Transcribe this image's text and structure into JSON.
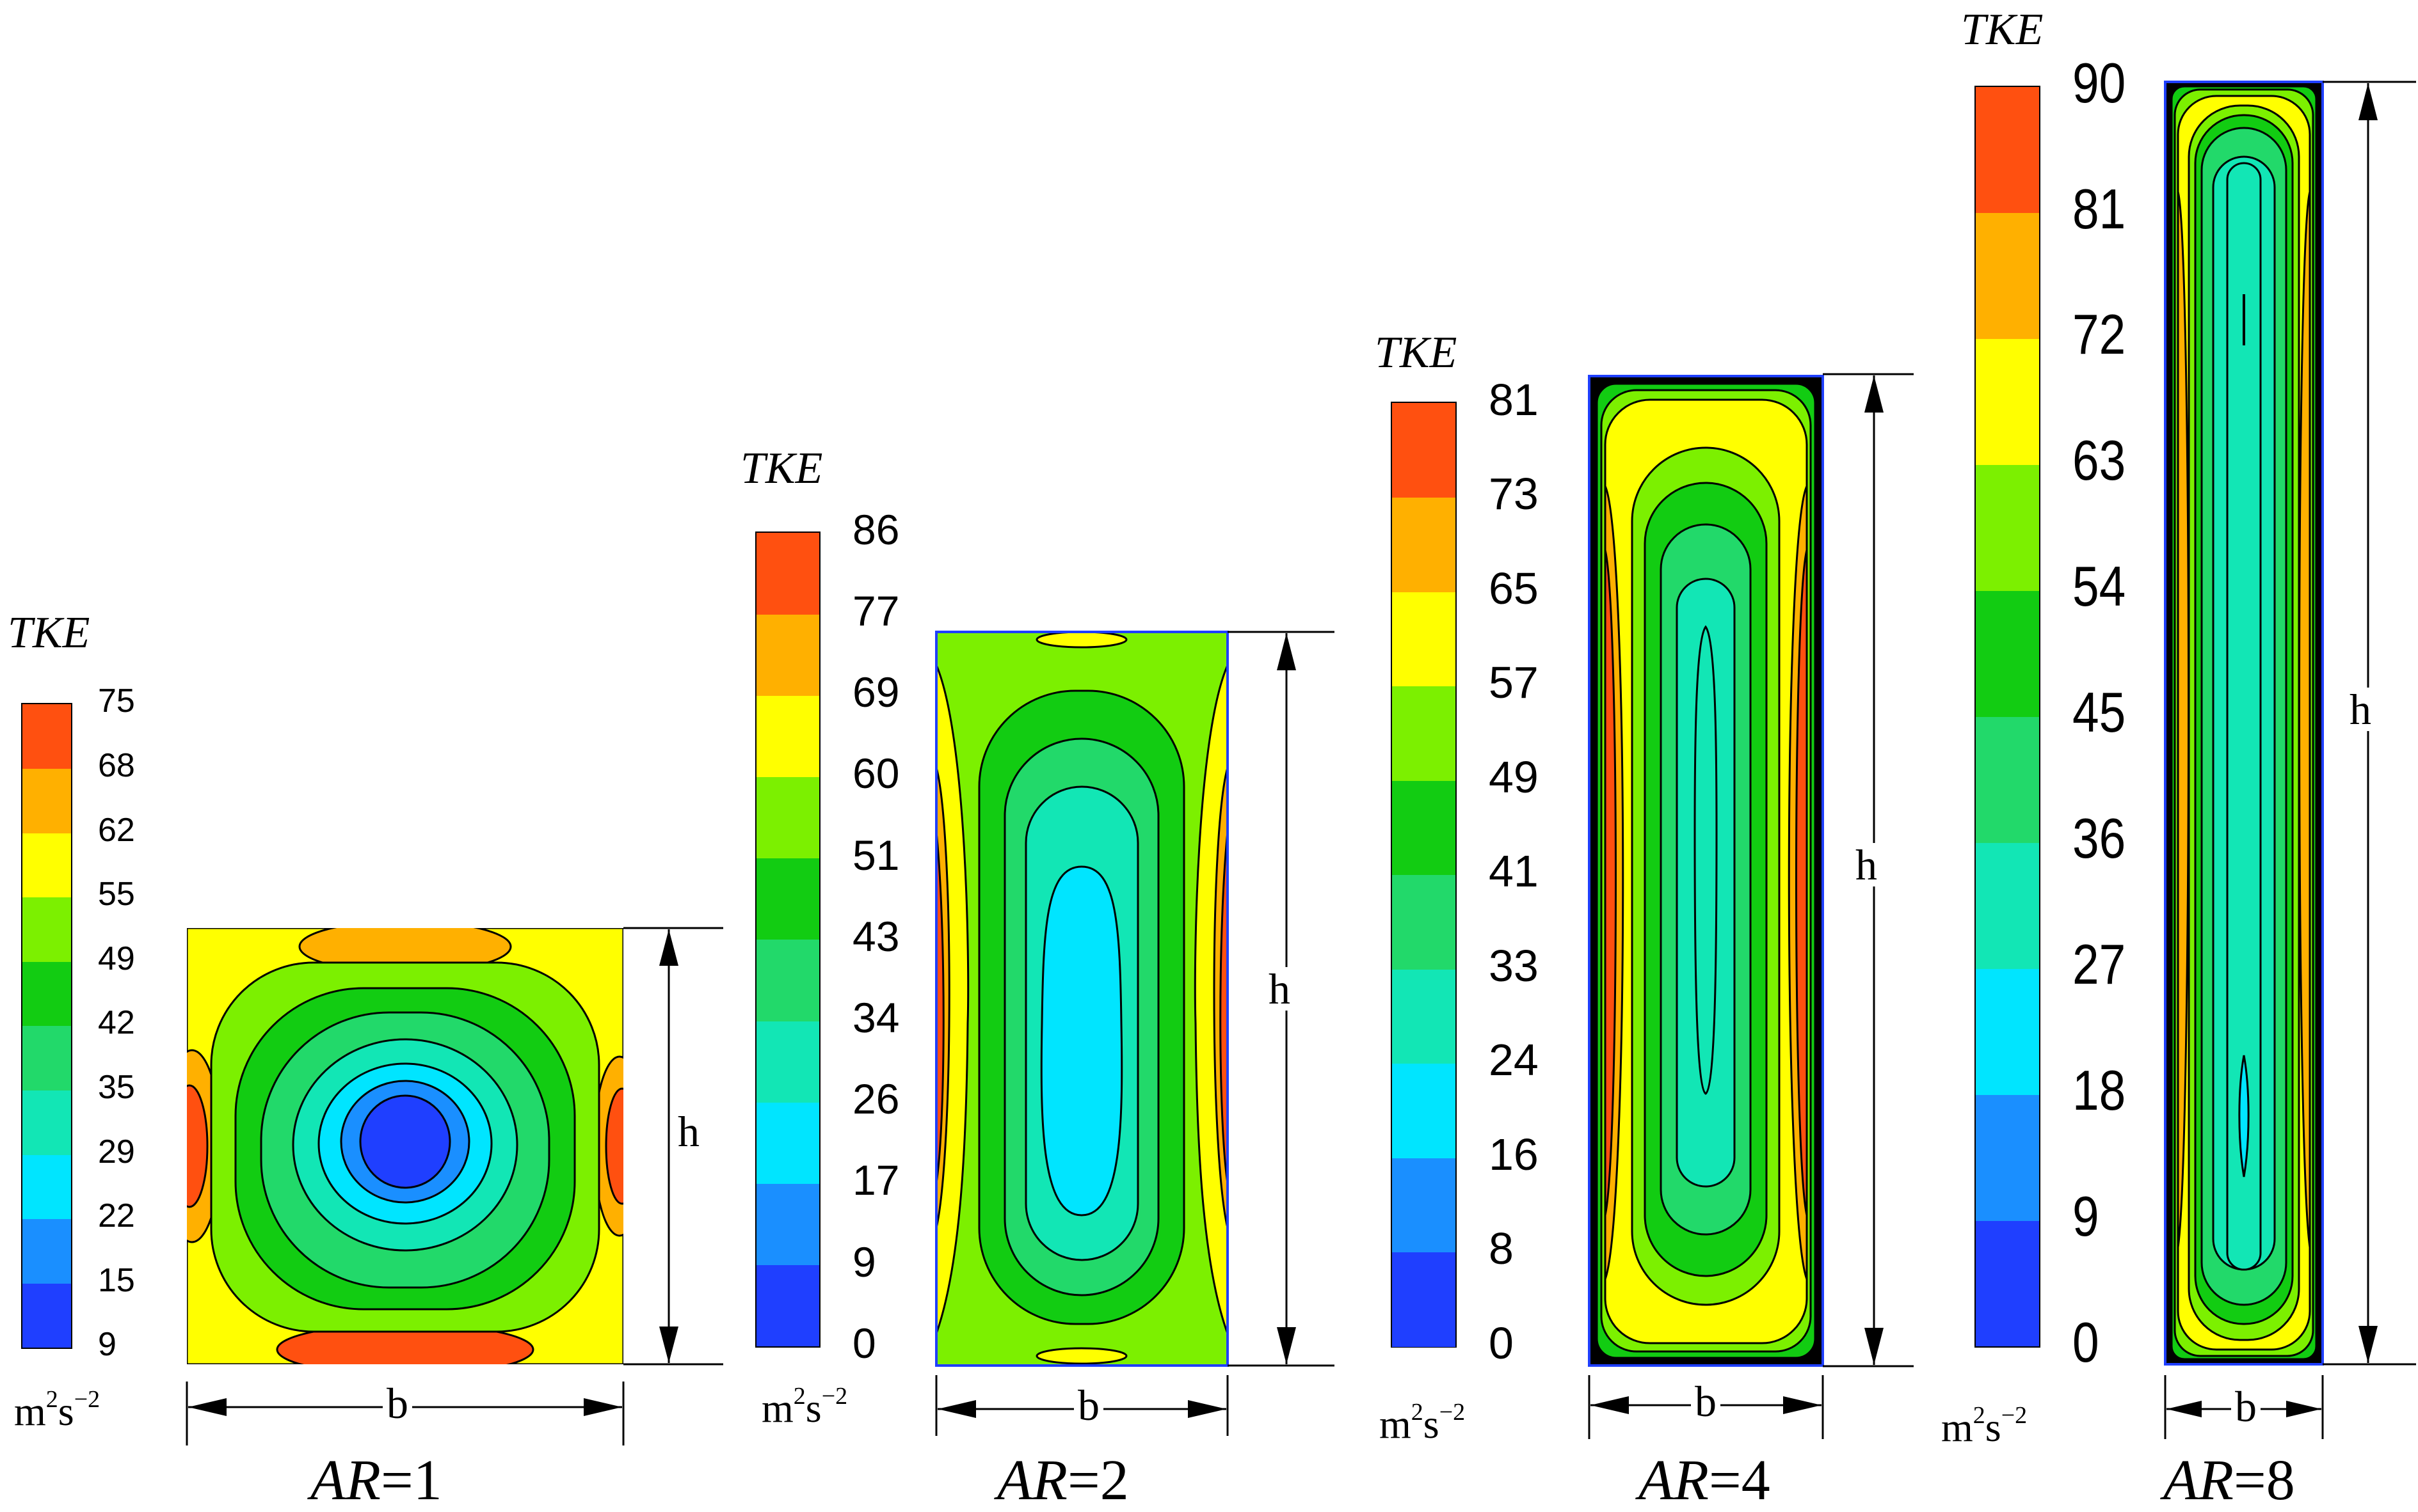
{
  "legend_title": "TKE",
  "unit": {
    "base": "m",
    "exp1": "2",
    "mid": "s",
    "exp2": "−2"
  },
  "dimension_labels": {
    "width": "b",
    "height": "h"
  },
  "colormap": [
    "#1f3fff",
    "#1a8fff",
    "#00e5ff",
    "#12e6b5",
    "#22d96a",
    "#12cc12",
    "#7cf000",
    "#ffff00",
    "#ffb000",
    "#ff5010"
  ],
  "panels": [
    {
      "label": "AR=1",
      "ar_prefix": "AR",
      "ar_value": "=1",
      "aspect_ratio": 1,
      "ticks": [
        "9",
        "15",
        "22",
        "29",
        "35",
        "42",
        "49",
        "55",
        "62",
        "68",
        "75"
      ]
    },
    {
      "label": "AR=2",
      "ar_prefix": "AR",
      "ar_value": "=2",
      "aspect_ratio": 2,
      "ticks": [
        "0",
        "9",
        "17",
        "26",
        "34",
        "43",
        "51",
        "60",
        "69",
        "77",
        "86"
      ]
    },
    {
      "label": "AR=4",
      "ar_prefix": "AR",
      "ar_value": "=4",
      "aspect_ratio": 4,
      "ticks": [
        "0",
        "8",
        "16",
        "24",
        "33",
        "41",
        "49",
        "57",
        "65",
        "73",
        "81"
      ]
    },
    {
      "label": "AR=8",
      "ar_prefix": "AR",
      "ar_value": "=8",
      "aspect_ratio": 8,
      "ticks": [
        "0",
        "9",
        "18",
        "27",
        "36",
        "45",
        "54",
        "63",
        "72",
        "81",
        "90"
      ]
    }
  ]
}
